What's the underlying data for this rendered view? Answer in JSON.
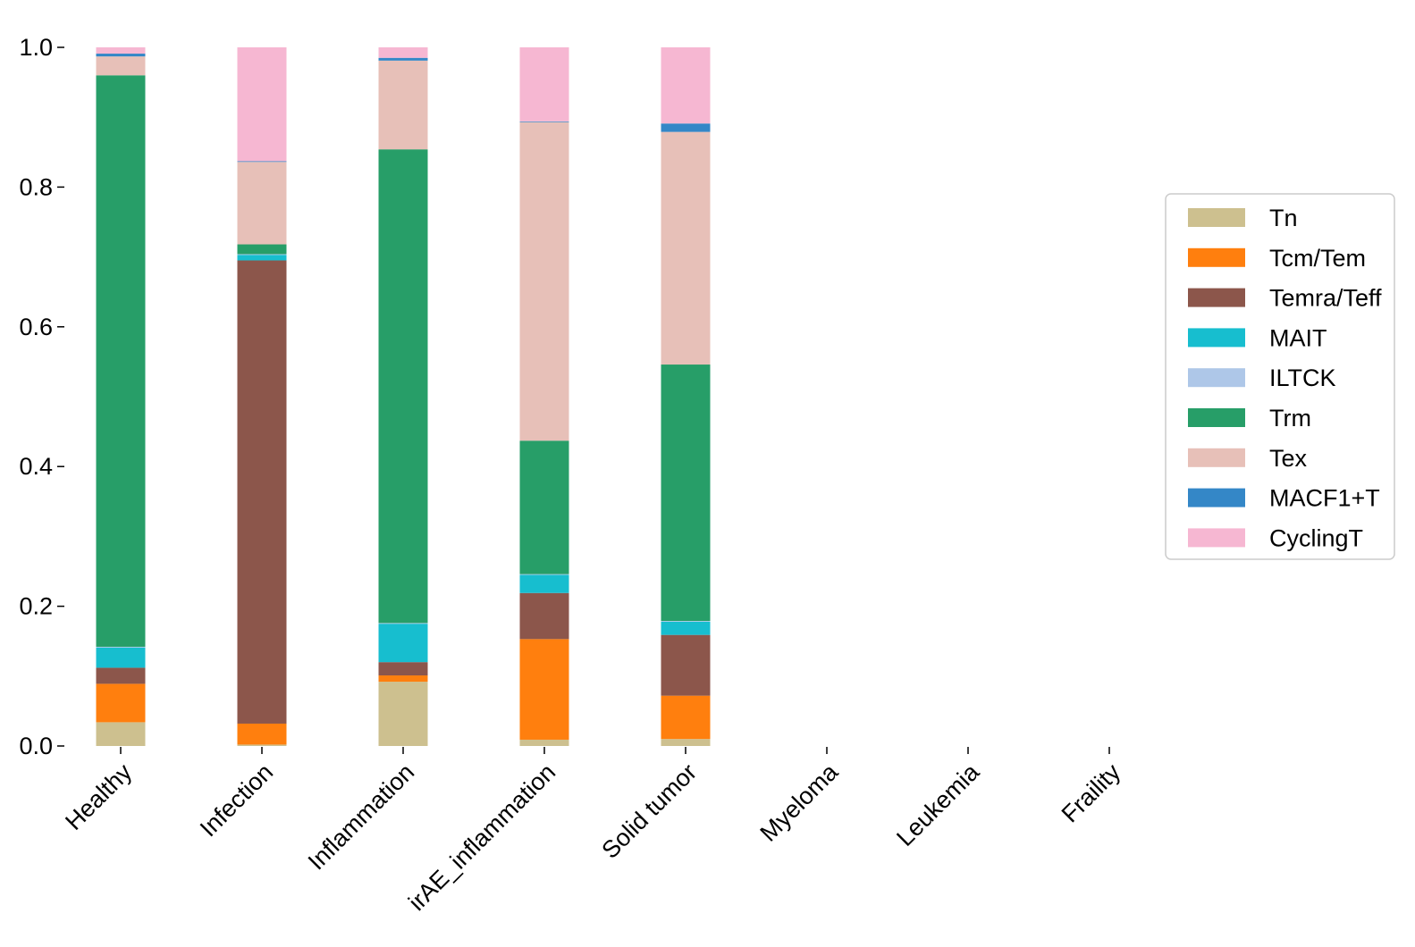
{
  "chart_data": {
    "type": "bar",
    "stacked": true,
    "title": "",
    "xlabel": "",
    "ylabel": "",
    "ylim": [
      0,
      1
    ],
    "yticks": [
      "0.0",
      "0.2",
      "0.4",
      "0.6",
      "0.8",
      "1.0"
    ],
    "grid": false,
    "legend_position": "right",
    "categories": [
      "Healthy",
      "Infection",
      "Inflammation",
      "irAE_inflammation",
      "Solid tumor",
      "Myeloma",
      "Leukemia",
      "Fraility"
    ],
    "series": [
      {
        "name": "Tn",
        "color": "#cdc08f",
        "values": [
          0.034,
          0.002,
          0.092,
          0.009,
          0.01,
          0,
          0,
          0
        ]
      },
      {
        "name": "Tcm/Tem",
        "color": "#ff7f0e",
        "values": [
          0.055,
          0.03,
          0.009,
          0.144,
          0.062,
          0,
          0,
          0
        ]
      },
      {
        "name": "Temra/Teff",
        "color": "#8c564b",
        "values": [
          0.023,
          0.663,
          0.019,
          0.066,
          0.087,
          0,
          0,
          0
        ]
      },
      {
        "name": "MAIT",
        "color": "#17becf",
        "values": [
          0.029,
          0.008,
          0.055,
          0.026,
          0.019,
          0,
          0,
          0
        ]
      },
      {
        "name": "ILTCK",
        "color": "#aec7e8",
        "values": [
          0.001,
          0.001,
          0.001,
          0.001,
          0.001,
          0,
          0,
          0
        ]
      },
      {
        "name": "Trm",
        "color": "#279e68",
        "values": [
          0.818,
          0.014,
          0.678,
          0.191,
          0.367,
          0,
          0,
          0
        ]
      },
      {
        "name": "Tex",
        "color": "#e7c0b8",
        "values": [
          0.027,
          0.118,
          0.127,
          0.456,
          0.333,
          0,
          0,
          0
        ]
      },
      {
        "name": "MACF1+T",
        "color": "#3487c7",
        "values": [
          0.004,
          0.001,
          0.004,
          0.001,
          0.012,
          0,
          0,
          0
        ]
      },
      {
        "name": "CyclingT",
        "color": "#f6b7d2",
        "values": [
          0.009,
          0.163,
          0.015,
          0.106,
          0.109,
          0,
          0,
          0
        ]
      }
    ]
  }
}
